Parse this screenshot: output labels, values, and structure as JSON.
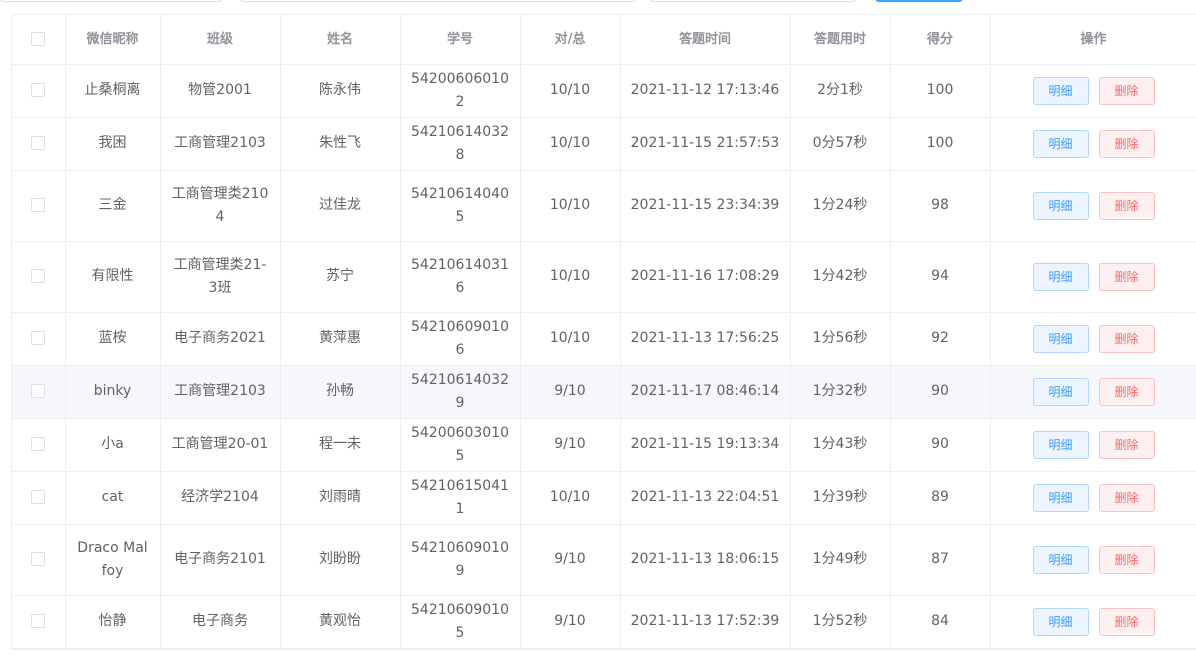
{
  "headers": {
    "nickname": "微信昵称",
    "class": "班级",
    "name": "姓名",
    "id": "学号",
    "correct": "对/总",
    "time": "答题时间",
    "duration": "答题用时",
    "score": "得分",
    "ops": "操作"
  },
  "buttons": {
    "detail": "明细",
    "delete": "删除"
  },
  "colors": {
    "primary": "#409eff",
    "danger": "#f56c6c"
  },
  "rows": [
    {
      "nickname": "止桑桐离",
      "class": "物管2001",
      "name": "陈永伟",
      "id": "542006060102",
      "correct": "10/10",
      "time": "2021-11-12 17:13:46",
      "duration": "2分1秒",
      "score": "100"
    },
    {
      "nickname": "我困",
      "class": "工商管理2103",
      "name": "朱性飞",
      "id": "542106140328",
      "correct": "10/10",
      "time": "2021-11-15 21:57:53",
      "duration": "0分57秒",
      "score": "100"
    },
    {
      "nickname": "三金",
      "class": "工商管理类2104",
      "name": "过佳龙",
      "id": "542106140405",
      "correct": "10/10",
      "time": "2021-11-15 23:34:39",
      "duration": "1分24秒",
      "score": "98"
    },
    {
      "nickname": "有限性",
      "class": "工商管理类21-3班",
      "name": "苏宁",
      "id": "542106140316",
      "correct": "10/10",
      "time": "2021-11-16 17:08:29",
      "duration": "1分42秒",
      "score": "94"
    },
    {
      "nickname": "蓝桉",
      "class": "电子商务2021",
      "name": "黄萍惠",
      "id": "542106090106",
      "correct": "10/10",
      "time": "2021-11-13 17:56:25",
      "duration": "1分56秒",
      "score": "92"
    },
    {
      "nickname": "binky",
      "class": "工商管理2103",
      "name": "孙畅",
      "id": "542106140329",
      "correct": "9/10",
      "time": "2021-11-17 08:46:14",
      "duration": "1分32秒",
      "score": "90"
    },
    {
      "nickname": "小a",
      "class": "工商管理20-01",
      "name": "程一未",
      "id": "542006030105",
      "correct": "9/10",
      "time": "2021-11-15 19:13:34",
      "duration": "1分43秒",
      "score": "90"
    },
    {
      "nickname": "cat",
      "class": "经济学2104",
      "name": "刘雨晴",
      "id": "542106150411",
      "correct": "10/10",
      "time": "2021-11-13 22:04:51",
      "duration": "1分39秒",
      "score": "89"
    },
    {
      "nickname": "Draco Malfoy",
      "class": "电子商务2101",
      "name": "刘盼盼",
      "id": "542106090109",
      "correct": "9/10",
      "time": "2021-11-13 18:06:15",
      "duration": "1分49秒",
      "score": "87"
    },
    {
      "nickname": "怡静",
      "class": "电子商务",
      "name": "黄观怡",
      "id": "542106090105",
      "correct": "9/10",
      "time": "2021-11-13 17:52:39",
      "duration": "1分52秒",
      "score": "84"
    }
  ]
}
